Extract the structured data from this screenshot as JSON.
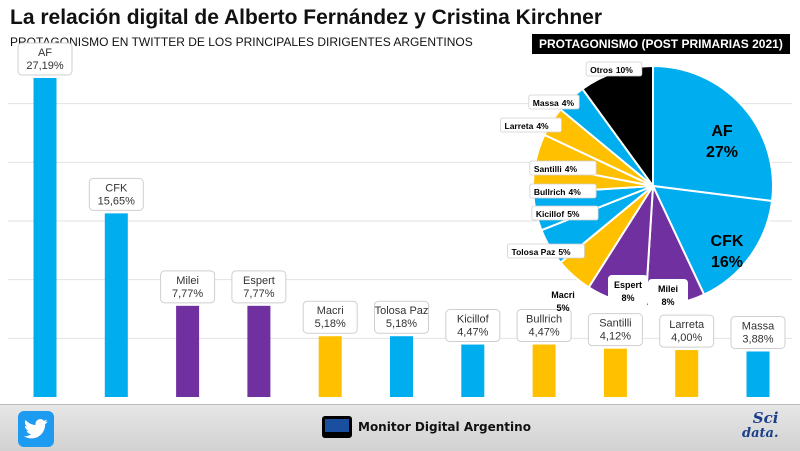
{
  "title": "La relación digital de Alberto Fernández y Cristina Kirchner",
  "subtitle": "PROTAGONISMO EN TWITTER DE LOS PRINCIPALES DIRIGENTES ARGENTINOS",
  "pie_title": "PROTAGONISMO (POST PRIMARIAS 2021)",
  "footer": {
    "twitter_icon": "twitter-bird-icon",
    "brand": "Monitor Digital Argentino",
    "scidata_line1": "Sci",
    "scidata_line2": "data."
  },
  "colors": {
    "blue": "#00adef",
    "purple": "#7030a0",
    "yellow": "#ffc000",
    "black": "#000000"
  },
  "chart_data": [
    {
      "type": "bar",
      "categories": [
        "AF",
        "CFK",
        "Milei",
        "Espert",
        "Macri",
        "Tolosa Paz",
        "Kicillof",
        "Bullrich",
        "Santilli",
        "Larreta",
        "Massa"
      ],
      "values": [
        27.19,
        15.65,
        7.77,
        7.77,
        5.18,
        5.18,
        4.47,
        4.47,
        4.12,
        4.0,
        3.88
      ],
      "value_labels": [
        "27,19%",
        "15,65%",
        "7,77%",
        "7,77%",
        "5,18%",
        "5,18%",
        "4,47%",
        "4,47%",
        "4,12%",
        "4,00%",
        "3,88%"
      ],
      "colors": [
        "#00adef",
        "#00adef",
        "#7030a0",
        "#7030a0",
        "#ffc000",
        "#00adef",
        "#00adef",
        "#ffc000",
        "#ffc000",
        "#ffc000",
        "#00adef"
      ],
      "ylim": [
        0,
        30
      ],
      "grid": true
    },
    {
      "type": "pie",
      "title": "PROTAGONISMO (POST PRIMARIAS 2021)",
      "slices": [
        {
          "label": "AF",
          "value": 27,
          "text": "27%",
          "color": "#00adef"
        },
        {
          "label": "CFK",
          "value": 16,
          "text": "16%",
          "color": "#00adef"
        },
        {
          "label": "Milei",
          "value": 8,
          "text": "8%",
          "color": "#7030a0"
        },
        {
          "label": "Espert",
          "value": 8,
          "text": "8%",
          "color": "#7030a0"
        },
        {
          "label": "Macri",
          "value": 5,
          "text": "5%",
          "color": "#ffc000"
        },
        {
          "label": "Tolosa Paz",
          "value": 5,
          "text": "5%",
          "color": "#00adef"
        },
        {
          "label": "Kicillof",
          "value": 5,
          "text": "5%",
          "color": "#00adef"
        },
        {
          "label": "Bullrich",
          "value": 4,
          "text": "4%",
          "color": "#ffc000"
        },
        {
          "label": "Santilli",
          "value": 4,
          "text": "4%",
          "color": "#ffc000"
        },
        {
          "label": "Larreta",
          "value": 4,
          "text": "4%",
          "color": "#ffc000"
        },
        {
          "label": "Massa",
          "value": 4,
          "text": "4%",
          "color": "#00adef"
        },
        {
          "label": "Otros",
          "value": 10,
          "text": "10%",
          "color": "#000000"
        }
      ]
    }
  ]
}
